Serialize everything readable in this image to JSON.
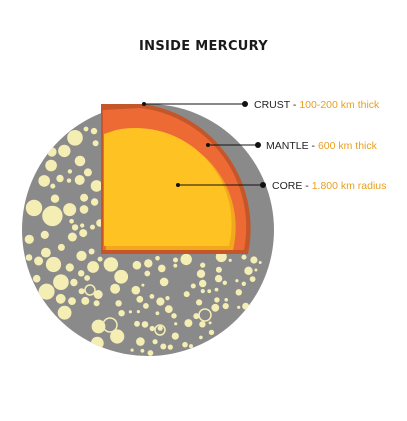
{
  "title": "INSIDE MERCURY",
  "layers": [
    {
      "name": "CRUST",
      "detail": "100-200 km thick"
    },
    {
      "name": "MANTLE",
      "detail": "600 km thick"
    },
    {
      "name": "CORE",
      "detail": "1.800 km radius"
    }
  ],
  "colors": {
    "surface": "#8a8a8a",
    "craters": "#f5eeb4",
    "crust": "#c4562a",
    "mantle": "#ee6a35",
    "core": "#ffc223",
    "core_edge": "#f2a81c",
    "label_name": "#222222",
    "label_detail": "#e8a020",
    "leader_line": "#111111"
  }
}
